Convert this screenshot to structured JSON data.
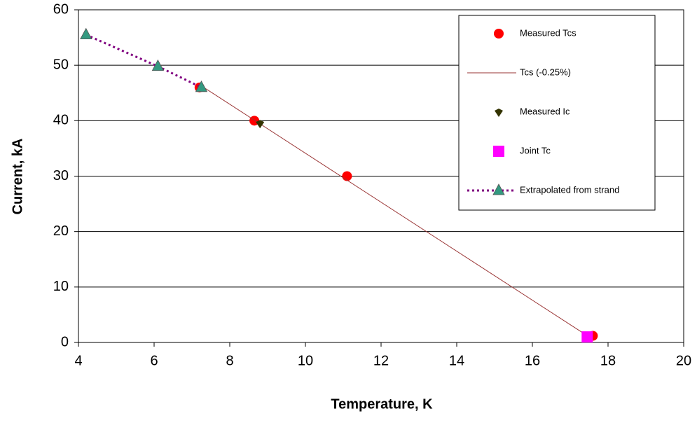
{
  "chart_data": {
    "type": "scatter",
    "xlabel": "Temperature, K",
    "ylabel": "Current, kA",
    "xlim": [
      4,
      20
    ],
    "ylim": [
      0,
      60
    ],
    "xticks": [
      4,
      6,
      8,
      10,
      12,
      14,
      16,
      18,
      20
    ],
    "yticks": [
      0,
      10,
      20,
      30,
      40,
      50,
      60
    ],
    "grid": "y",
    "legend": "upper right",
    "series": [
      {
        "name": "Measured Tcs",
        "color": "#ff0000",
        "marker": "circle",
        "line": "none",
        "x": [
          7.2,
          8.65,
          11.1,
          17.6
        ],
        "values": [
          46,
          40,
          30,
          1.2
        ]
      },
      {
        "name": "Tcs  (-0.25%)",
        "color": "#993333",
        "marker": "none",
        "line": "solid",
        "x": [
          7.2,
          17.5
        ],
        "values": [
          46.5,
          1
        ]
      },
      {
        "name": "Measured Ic",
        "color": "#333300",
        "marker": "diamond",
        "line": "none",
        "x": [
          8.8
        ],
        "values": [
          39.5
        ]
      },
      {
        "name": "Joint Tc",
        "color": "#ff00ff",
        "marker": "square",
        "line": "none",
        "x": [
          17.45
        ],
        "values": [
          1
        ]
      },
      {
        "name": "Extrapolated from strand",
        "color": "#800080",
        "marker_color": "#339980",
        "marker": "triangle",
        "line": "dotted",
        "x": [
          4.2,
          6.1,
          7.25
        ],
        "values": [
          55.5,
          49.8,
          46
        ]
      }
    ]
  }
}
